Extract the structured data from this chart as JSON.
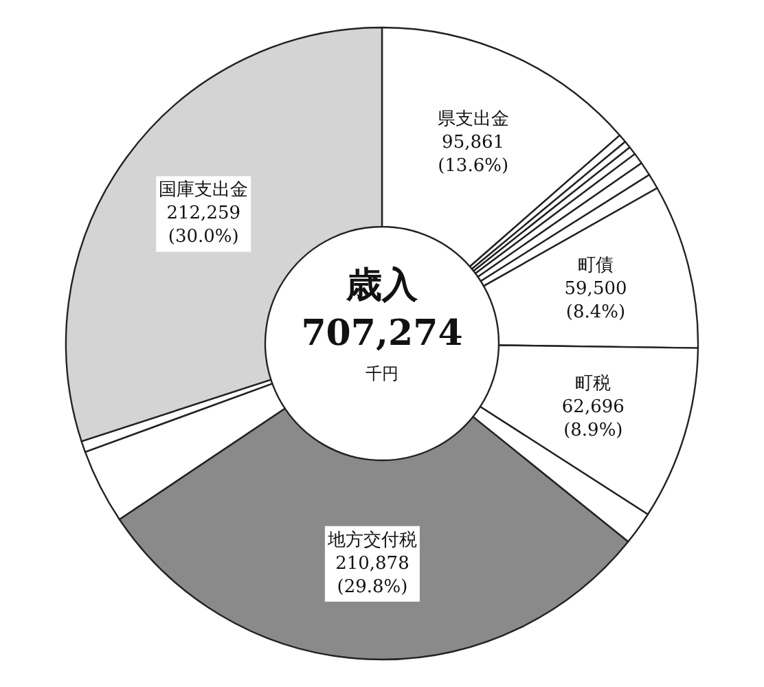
{
  "chart_data": {
    "type": "donut",
    "title": "歳入",
    "annotations": [
      "707,274",
      "千円"
    ],
    "categories": [
      "県支出金",
      null,
      null,
      null,
      null,
      null,
      null,
      "町債",
      "町税",
      null,
      "地方交付税",
      null,
      null,
      "国庫支出金"
    ],
    "values": [
      95861,
      3000,
      2568,
      3000,
      4000,
      5000,
      5512,
      59500,
      62696,
      12000,
      210878,
      27000,
      4000,
      212259
    ],
    "value_labels": [
      "95,861\n(13.6%)",
      null,
      null,
      null,
      null,
      null,
      null,
      "59,500\n(8.4%)",
      "62,696\n(8.9%)",
      null,
      "210,878\n(29.8%)",
      null,
      null,
      "212,259\n(30.0%)"
    ],
    "colors": [
      "#ffffff",
      "#ffffff",
      "#ffffff",
      "#ffffff",
      "#ffffff",
      "#ffffff",
      "#ffffff",
      "#ffffff",
      "#ffffff",
      "#ffffff",
      "#8a8a8a",
      "#ffffff",
      "#ffffff",
      "#d4d4d4"
    ],
    "legend": false
  }
}
